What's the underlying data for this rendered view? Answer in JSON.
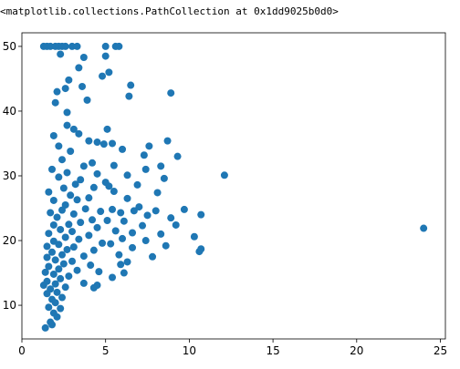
{
  "chart_data": {
    "type": "scatter",
    "header": "<matplotlib.collections.PathCollection at 0x1dd9025b0d0>",
    "color": "#1f77b4",
    "xlim": [
      0,
      25.3
    ],
    "ylim": [
      4.8,
      52.1
    ],
    "xticks": [
      0,
      5,
      10,
      15,
      20,
      25
    ],
    "yticks": [
      10,
      20,
      30,
      40,
      50
    ],
    "grid": false,
    "x": [
      1.3,
      1.5,
      1.7,
      2.0,
      2.2,
      2.4,
      2.6,
      3.0,
      3.3,
      5.0,
      5.6,
      5.8,
      2.3,
      3.7,
      5.0,
      6.4,
      6.5,
      5.2,
      4.8,
      3.4,
      2.8,
      2.6,
      3.6,
      2.1,
      8.9,
      3.9,
      2.0,
      2.7,
      5.1,
      2.7,
      3.1,
      1.9,
      3.4,
      4.0,
      4.5,
      5.4,
      4.9,
      7.6,
      8.7,
      2.2,
      2.9,
      6.0,
      7.3,
      9.3,
      2.4,
      4.2,
      5.5,
      3.7,
      8.3,
      7.4,
      1.8,
      2.7,
      4.5,
      6.3,
      12.1,
      8.5,
      2.2,
      3.5,
      5.0,
      3.2,
      6.9,
      4.3,
      5.2,
      2.5,
      5.5,
      1.6,
      8.1,
      2.9,
      4.0,
      3.3,
      6.3,
      1.9,
      2.6,
      7.0,
      9.7,
      10.7,
      3.8,
      5.4,
      6.7,
      8.0,
      2.4,
      4.7,
      1.7,
      3.1,
      5.9,
      7.5,
      8.9,
      2.1,
      4.2,
      5.1,
      6.1,
      3.5,
      1.9,
      2.8,
      9.2,
      7.2,
      4.5,
      24.0,
      2.3,
      3.0,
      5.6,
      6.6,
      8.3,
      1.6,
      4.0,
      10.3,
      2.6,
      3.4,
      6.0,
      7.4,
      1.9,
      4.8,
      2.2,
      5.3,
      8.6,
      1.5,
      3.1,
      6.6,
      10.7,
      10.6,
      2.7,
      4.3,
      1.8,
      2.4,
      3.7,
      5.8,
      7.8,
      1.5,
      2.0,
      3.0,
      6.3,
      2.5,
      4.1,
      5.9,
      1.6,
      2.2,
      3.3,
      4.6,
      6.1,
      1.4,
      1.9,
      2.8,
      5.4,
      2.3,
      1.5,
      3.7,
      4.5,
      2.0,
      1.3,
      2.6,
      1.7,
      4.3,
      2.1,
      1.5,
      2.4,
      1.8,
      2.0,
      1.6,
      1.9,
      2.1,
      1.7,
      1.4,
      1.8,
      2.3
    ],
    "y": [
      50,
      50,
      50,
      50,
      50,
      50,
      50,
      50,
      50,
      50,
      50,
      50,
      48.8,
      48.3,
      48.5,
      42.3,
      44,
      46,
      45.4,
      46.7,
      44.8,
      43.5,
      43.8,
      43,
      42.8,
      41.7,
      41.3,
      39.8,
      37.2,
      37.8,
      37.2,
      36.2,
      36.5,
      35.4,
      35.2,
      35,
      34.9,
      34.6,
      35.4,
      34.6,
      33.8,
      34.1,
      33.2,
      33,
      32.5,
      32,
      31.6,
      31.5,
      31.5,
      31,
      31,
      30.5,
      30.3,
      30.1,
      30.1,
      29.6,
      29.8,
      29.4,
      29,
      28.7,
      28.6,
      28.2,
      28.4,
      28.1,
      27.6,
      27.5,
      27.4,
      27,
      26.6,
      26.3,
      26.5,
      26.2,
      25.5,
      25.2,
      24.8,
      24,
      24.9,
      24.8,
      24.6,
      24.6,
      24.7,
      24.5,
      24.3,
      24.1,
      24.3,
      23.9,
      23.5,
      23.6,
      23.2,
      23.1,
      23,
      22.8,
      22.4,
      22.5,
      22.4,
      22.3,
      22,
      21.9,
      21.7,
      21.4,
      21.5,
      21.2,
      21,
      21.1,
      20.8,
      20.6,
      20.5,
      20.2,
      20.3,
      20,
      19.9,
      19.6,
      19.4,
      19.5,
      19.2,
      19.1,
      19,
      18.9,
      18.7,
      18.3,
      18.6,
      18.5,
      18.2,
      17.8,
      17.6,
      17.8,
      17.5,
      17.4,
      17,
      16.8,
      16.7,
      16.4,
      16.2,
      16.3,
      16,
      15.6,
      15.4,
      15.2,
      15,
      15.1,
      14.8,
      14.5,
      14.3,
      14.1,
      13.7,
      13.4,
      13.1,
      13.3,
      13.1,
      12.8,
      12.5,
      12.7,
      12,
      11.8,
      11.2,
      10.9,
      10.4,
      9.7,
      8.8,
      8.2,
      7.4,
      6.5,
      7.0,
      9.5
    ]
  }
}
